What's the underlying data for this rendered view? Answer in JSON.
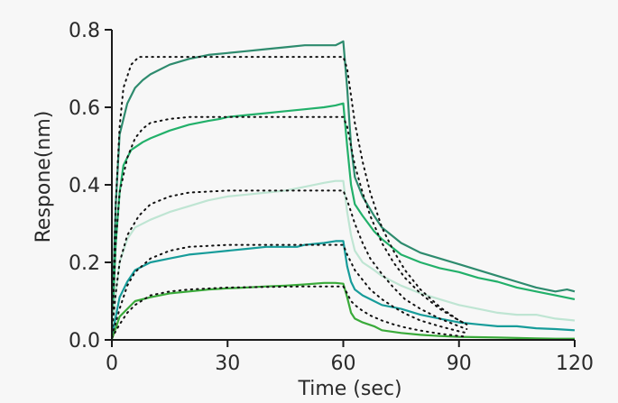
{
  "chart_data": {
    "type": "line",
    "title": "",
    "xlabel": "Time (sec)",
    "ylabel": "Respone(nm)",
    "xlim": [
      0,
      120
    ],
    "ylim": [
      0,
      0.8
    ],
    "x_ticks": [
      0,
      30,
      60,
      90,
      120
    ],
    "x_tick_labels": [
      "0",
      "30",
      "60",
      "90",
      "120"
    ],
    "y_ticks": [
      0,
      0.2,
      0.4,
      0.6,
      0.8
    ],
    "y_tick_labels": [
      "0.0",
      "0.2",
      "0.4",
      "0.6",
      "0.8"
    ],
    "grid": false,
    "legend": "none",
    "series": [
      {
        "style": "solid",
        "color": "#2e8b6e",
        "points": [
          [
            0,
            0.02
          ],
          [
            1,
            0.35
          ],
          [
            2,
            0.53
          ],
          [
            4,
            0.61
          ],
          [
            6,
            0.65
          ],
          [
            8,
            0.67
          ],
          [
            10,
            0.685
          ],
          [
            15,
            0.71
          ],
          [
            20,
            0.725
          ],
          [
            25,
            0.735
          ],
          [
            30,
            0.74
          ],
          [
            35,
            0.745
          ],
          [
            40,
            0.75
          ],
          [
            45,
            0.755
          ],
          [
            50,
            0.76
          ],
          [
            55,
            0.76
          ],
          [
            58,
            0.76
          ],
          [
            59,
            0.765
          ],
          [
            60,
            0.77
          ],
          [
            61,
            0.65
          ],
          [
            62,
            0.5
          ],
          [
            63,
            0.42
          ],
          [
            65,
            0.37
          ],
          [
            68,
            0.32
          ],
          [
            70,
            0.29
          ],
          [
            75,
            0.25
          ],
          [
            80,
            0.225
          ],
          [
            85,
            0.21
          ],
          [
            90,
            0.195
          ],
          [
            95,
            0.18
          ],
          [
            100,
            0.165
          ],
          [
            105,
            0.15
          ],
          [
            110,
            0.135
          ],
          [
            115,
            0.125
          ],
          [
            118,
            0.13
          ],
          [
            120,
            0.125
          ]
        ]
      },
      {
        "style": "solid",
        "color": "#22b06a",
        "points": [
          [
            0,
            0.01
          ],
          [
            1,
            0.25
          ],
          [
            2,
            0.38
          ],
          [
            3,
            0.45
          ],
          [
            5,
            0.49
          ],
          [
            8,
            0.51
          ],
          [
            10,
            0.52
          ],
          [
            15,
            0.54
          ],
          [
            20,
            0.555
          ],
          [
            25,
            0.565
          ],
          [
            28,
            0.57
          ],
          [
            30,
            0.575
          ],
          [
            35,
            0.58
          ],
          [
            40,
            0.585
          ],
          [
            45,
            0.59
          ],
          [
            50,
            0.595
          ],
          [
            55,
            0.6
          ],
          [
            58,
            0.605
          ],
          [
            60,
            0.61
          ],
          [
            61,
            0.5
          ],
          [
            62,
            0.4
          ],
          [
            63,
            0.35
          ],
          [
            65,
            0.32
          ],
          [
            68,
            0.28
          ],
          [
            70,
            0.26
          ],
          [
            75,
            0.22
          ],
          [
            80,
            0.2
          ],
          [
            85,
            0.185
          ],
          [
            90,
            0.175
          ],
          [
            95,
            0.16
          ],
          [
            100,
            0.15
          ],
          [
            105,
            0.135
          ],
          [
            110,
            0.125
          ],
          [
            115,
            0.115
          ],
          [
            120,
            0.105
          ]
        ]
      },
      {
        "style": "solid",
        "color": "#bfe5d3",
        "points": [
          [
            0,
            0.01
          ],
          [
            1,
            0.12
          ],
          [
            2,
            0.2
          ],
          [
            4,
            0.26
          ],
          [
            6,
            0.29
          ],
          [
            10,
            0.31
          ],
          [
            15,
            0.33
          ],
          [
            20,
            0.345
          ],
          [
            25,
            0.36
          ],
          [
            30,
            0.37
          ],
          [
            35,
            0.375
          ],
          [
            40,
            0.38
          ],
          [
            45,
            0.385
          ],
          [
            50,
            0.395
          ],
          [
            55,
            0.405
          ],
          [
            58,
            0.41
          ],
          [
            60,
            0.41
          ],
          [
            61,
            0.33
          ],
          [
            62,
            0.27
          ],
          [
            63,
            0.23
          ],
          [
            65,
            0.2
          ],
          [
            68,
            0.18
          ],
          [
            70,
            0.165
          ],
          [
            75,
            0.14
          ],
          [
            80,
            0.12
          ],
          [
            85,
            0.105
          ],
          [
            90,
            0.09
          ],
          [
            95,
            0.08
          ],
          [
            100,
            0.07
          ],
          [
            105,
            0.065
          ],
          [
            110,
            0.065
          ],
          [
            115,
            0.055
          ],
          [
            120,
            0.05
          ]
        ]
      },
      {
        "style": "solid",
        "color": "#179c9a",
        "points": [
          [
            0,
            0.005
          ],
          [
            1,
            0.06
          ],
          [
            2,
            0.11
          ],
          [
            4,
            0.15
          ],
          [
            6,
            0.18
          ],
          [
            10,
            0.2
          ],
          [
            15,
            0.21
          ],
          [
            20,
            0.22
          ],
          [
            25,
            0.225
          ],
          [
            30,
            0.23
          ],
          [
            35,
            0.235
          ],
          [
            40,
            0.24
          ],
          [
            45,
            0.24
          ],
          [
            48,
            0.24
          ],
          [
            50,
            0.245
          ],
          [
            55,
            0.25
          ],
          [
            58,
            0.255
          ],
          [
            60,
            0.255
          ],
          [
            61,
            0.19
          ],
          [
            62,
            0.15
          ],
          [
            63,
            0.13
          ],
          [
            65,
            0.115
          ],
          [
            68,
            0.1
          ],
          [
            70,
            0.09
          ],
          [
            75,
            0.08
          ],
          [
            80,
            0.065
          ],
          [
            85,
            0.055
          ],
          [
            90,
            0.045
          ],
          [
            95,
            0.04
          ],
          [
            100,
            0.035
          ],
          [
            105,
            0.035
          ],
          [
            110,
            0.03
          ],
          [
            115,
            0.028
          ],
          [
            120,
            0.025
          ]
        ]
      },
      {
        "style": "solid",
        "color": "#3aaa3a",
        "points": [
          [
            0,
            0.002
          ],
          [
            1,
            0.03
          ],
          [
            2,
            0.06
          ],
          [
            4,
            0.08
          ],
          [
            6,
            0.1
          ],
          [
            10,
            0.11
          ],
          [
            15,
            0.12
          ],
          [
            20,
            0.125
          ],
          [
            25,
            0.13
          ],
          [
            30,
            0.133
          ],
          [
            35,
            0.135
          ],
          [
            40,
            0.138
          ],
          [
            45,
            0.14
          ],
          [
            50,
            0.143
          ],
          [
            55,
            0.147
          ],
          [
            58,
            0.147
          ],
          [
            60,
            0.145
          ],
          [
            61,
            0.11
          ],
          [
            62,
            0.07
          ],
          [
            63,
            0.055
          ],
          [
            65,
            0.045
          ],
          [
            68,
            0.035
          ],
          [
            70,
            0.025
          ],
          [
            75,
            0.018
          ],
          [
            80,
            0.013
          ],
          [
            85,
            0.01
          ],
          [
            90,
            0.008
          ],
          [
            95,
            0.007
          ],
          [
            100,
            0.006
          ],
          [
            105,
            0.005
          ],
          [
            110,
            0.004
          ],
          [
            115,
            0.003
          ],
          [
            120,
            0.003
          ]
        ]
      },
      {
        "style": "dotted",
        "color": "#111111",
        "points": [
          [
            0,
            0.02
          ],
          [
            1,
            0.35
          ],
          [
            2,
            0.55
          ],
          [
            3,
            0.65
          ],
          [
            5,
            0.71
          ],
          [
            7,
            0.73
          ],
          [
            10,
            0.73
          ],
          [
            20,
            0.73
          ],
          [
            40,
            0.73
          ],
          [
            55,
            0.73
          ],
          [
            60,
            0.73
          ],
          [
            61,
            0.7
          ],
          [
            62,
            0.63
          ],
          [
            63,
            0.56
          ],
          [
            65,
            0.46
          ],
          [
            67,
            0.38
          ],
          [
            70,
            0.29
          ],
          [
            73,
            0.23
          ],
          [
            76,
            0.18
          ],
          [
            80,
            0.13
          ],
          [
            85,
            0.085
          ],
          [
            90,
            0.05
          ],
          [
            92,
            0.04
          ]
        ]
      },
      {
        "style": "dotted",
        "color": "#111111",
        "points": [
          [
            0,
            0.02
          ],
          [
            1,
            0.25
          ],
          [
            2,
            0.38
          ],
          [
            4,
            0.47
          ],
          [
            6,
            0.52
          ],
          [
            8,
            0.545
          ],
          [
            10,
            0.56
          ],
          [
            15,
            0.57
          ],
          [
            20,
            0.575
          ],
          [
            40,
            0.575
          ],
          [
            55,
            0.575
          ],
          [
            60,
            0.575
          ],
          [
            61,
            0.55
          ],
          [
            62,
            0.5
          ],
          [
            63,
            0.45
          ],
          [
            65,
            0.38
          ],
          [
            67,
            0.32
          ],
          [
            70,
            0.25
          ],
          [
            73,
            0.2
          ],
          [
            76,
            0.16
          ],
          [
            80,
            0.12
          ],
          [
            85,
            0.08
          ],
          [
            90,
            0.05
          ],
          [
            92,
            0.04
          ]
        ]
      },
      {
        "style": "dotted",
        "color": "#111111",
        "points": [
          [
            0,
            0.02
          ],
          [
            1,
            0.12
          ],
          [
            2,
            0.2
          ],
          [
            4,
            0.27
          ],
          [
            7,
            0.32
          ],
          [
            10,
            0.35
          ],
          [
            15,
            0.37
          ],
          [
            20,
            0.38
          ],
          [
            30,
            0.385
          ],
          [
            50,
            0.385
          ],
          [
            60,
            0.385
          ],
          [
            61,
            0.36
          ],
          [
            62,
            0.33
          ],
          [
            63,
            0.3
          ],
          [
            65,
            0.25
          ],
          [
            67,
            0.21
          ],
          [
            70,
            0.17
          ],
          [
            73,
            0.135
          ],
          [
            76,
            0.105
          ],
          [
            80,
            0.08
          ],
          [
            85,
            0.055
          ],
          [
            90,
            0.035
          ],
          [
            92,
            0.028
          ]
        ]
      },
      {
        "style": "dotted",
        "color": "#111111",
        "points": [
          [
            0,
            0.01
          ],
          [
            2,
            0.08
          ],
          [
            4,
            0.14
          ],
          [
            6,
            0.175
          ],
          [
            10,
            0.21
          ],
          [
            15,
            0.23
          ],
          [
            20,
            0.24
          ],
          [
            30,
            0.245
          ],
          [
            50,
            0.245
          ],
          [
            60,
            0.245
          ],
          [
            61,
            0.22
          ],
          [
            62,
            0.2
          ],
          [
            63,
            0.18
          ],
          [
            65,
            0.155
          ],
          [
            67,
            0.13
          ],
          [
            70,
            0.105
          ],
          [
            73,
            0.085
          ],
          [
            76,
            0.068
          ],
          [
            80,
            0.05
          ],
          [
            85,
            0.035
          ],
          [
            90,
            0.022
          ],
          [
            92,
            0.018
          ]
        ]
      },
      {
        "style": "dotted",
        "color": "#111111",
        "points": [
          [
            0,
            0.005
          ],
          [
            2,
            0.04
          ],
          [
            4,
            0.07
          ],
          [
            6,
            0.09
          ],
          [
            10,
            0.115
          ],
          [
            15,
            0.125
          ],
          [
            20,
            0.13
          ],
          [
            30,
            0.135
          ],
          [
            50,
            0.138
          ],
          [
            60,
            0.138
          ],
          [
            61,
            0.12
          ],
          [
            62,
            0.1
          ],
          [
            63,
            0.09
          ],
          [
            65,
            0.075
          ],
          [
            67,
            0.063
          ],
          [
            70,
            0.05
          ],
          [
            73,
            0.04
          ],
          [
            76,
            0.032
          ],
          [
            80,
            0.024
          ],
          [
            85,
            0.016
          ],
          [
            90,
            0.01
          ],
          [
            92,
            0.008
          ]
        ]
      }
    ]
  }
}
